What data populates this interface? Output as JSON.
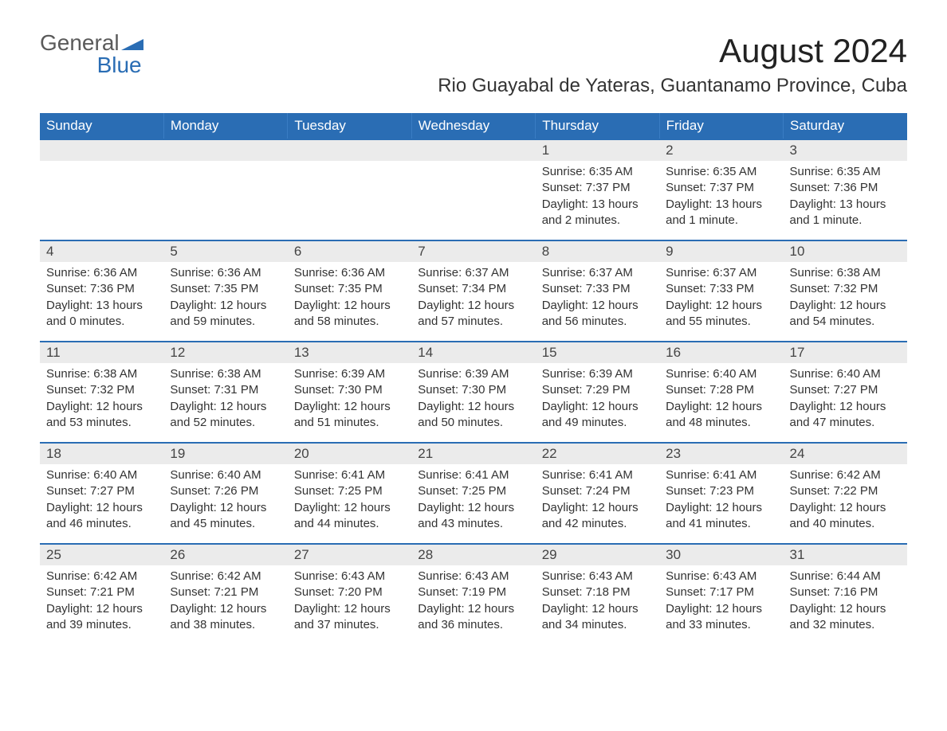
{
  "logo": {
    "top": "General",
    "bottom": "Blue"
  },
  "title": "August 2024",
  "subtitle": "Rio Guayabal de Yateras, Guantanamo Province, Cuba",
  "colors": {
    "header_bg": "#2a6db4",
    "header_text": "#ffffff",
    "daynum_bg": "#ebebeb",
    "row_border": "#2a6db4",
    "body_text": "#333333",
    "logo_gray": "#5a5a5a",
    "logo_blue": "#2a6db4",
    "page_bg": "#ffffff"
  },
  "weekdays": [
    "Sunday",
    "Monday",
    "Tuesday",
    "Wednesday",
    "Thursday",
    "Friday",
    "Saturday"
  ],
  "weeks": [
    [
      null,
      null,
      null,
      null,
      {
        "n": "1",
        "sunrise": "6:35 AM",
        "sunset": "7:37 PM",
        "daylight": "13 hours and 2 minutes."
      },
      {
        "n": "2",
        "sunrise": "6:35 AM",
        "sunset": "7:37 PM",
        "daylight": "13 hours and 1 minute."
      },
      {
        "n": "3",
        "sunrise": "6:35 AM",
        "sunset": "7:36 PM",
        "daylight": "13 hours and 1 minute."
      }
    ],
    [
      {
        "n": "4",
        "sunrise": "6:36 AM",
        "sunset": "7:36 PM",
        "daylight": "13 hours and 0 minutes."
      },
      {
        "n": "5",
        "sunrise": "6:36 AM",
        "sunset": "7:35 PM",
        "daylight": "12 hours and 59 minutes."
      },
      {
        "n": "6",
        "sunrise": "6:36 AM",
        "sunset": "7:35 PM",
        "daylight": "12 hours and 58 minutes."
      },
      {
        "n": "7",
        "sunrise": "6:37 AM",
        "sunset": "7:34 PM",
        "daylight": "12 hours and 57 minutes."
      },
      {
        "n": "8",
        "sunrise": "6:37 AM",
        "sunset": "7:33 PM",
        "daylight": "12 hours and 56 minutes."
      },
      {
        "n": "9",
        "sunrise": "6:37 AM",
        "sunset": "7:33 PM",
        "daylight": "12 hours and 55 minutes."
      },
      {
        "n": "10",
        "sunrise": "6:38 AM",
        "sunset": "7:32 PM",
        "daylight": "12 hours and 54 minutes."
      }
    ],
    [
      {
        "n": "11",
        "sunrise": "6:38 AM",
        "sunset": "7:32 PM",
        "daylight": "12 hours and 53 minutes."
      },
      {
        "n": "12",
        "sunrise": "6:38 AM",
        "sunset": "7:31 PM",
        "daylight": "12 hours and 52 minutes."
      },
      {
        "n": "13",
        "sunrise": "6:39 AM",
        "sunset": "7:30 PM",
        "daylight": "12 hours and 51 minutes."
      },
      {
        "n": "14",
        "sunrise": "6:39 AM",
        "sunset": "7:30 PM",
        "daylight": "12 hours and 50 minutes."
      },
      {
        "n": "15",
        "sunrise": "6:39 AM",
        "sunset": "7:29 PM",
        "daylight": "12 hours and 49 minutes."
      },
      {
        "n": "16",
        "sunrise": "6:40 AM",
        "sunset": "7:28 PM",
        "daylight": "12 hours and 48 minutes."
      },
      {
        "n": "17",
        "sunrise": "6:40 AM",
        "sunset": "7:27 PM",
        "daylight": "12 hours and 47 minutes."
      }
    ],
    [
      {
        "n": "18",
        "sunrise": "6:40 AM",
        "sunset": "7:27 PM",
        "daylight": "12 hours and 46 minutes."
      },
      {
        "n": "19",
        "sunrise": "6:40 AM",
        "sunset": "7:26 PM",
        "daylight": "12 hours and 45 minutes."
      },
      {
        "n": "20",
        "sunrise": "6:41 AM",
        "sunset": "7:25 PM",
        "daylight": "12 hours and 44 minutes."
      },
      {
        "n": "21",
        "sunrise": "6:41 AM",
        "sunset": "7:25 PM",
        "daylight": "12 hours and 43 minutes."
      },
      {
        "n": "22",
        "sunrise": "6:41 AM",
        "sunset": "7:24 PM",
        "daylight": "12 hours and 42 minutes."
      },
      {
        "n": "23",
        "sunrise": "6:41 AM",
        "sunset": "7:23 PM",
        "daylight": "12 hours and 41 minutes."
      },
      {
        "n": "24",
        "sunrise": "6:42 AM",
        "sunset": "7:22 PM",
        "daylight": "12 hours and 40 minutes."
      }
    ],
    [
      {
        "n": "25",
        "sunrise": "6:42 AM",
        "sunset": "7:21 PM",
        "daylight": "12 hours and 39 minutes."
      },
      {
        "n": "26",
        "sunrise": "6:42 AM",
        "sunset": "7:21 PM",
        "daylight": "12 hours and 38 minutes."
      },
      {
        "n": "27",
        "sunrise": "6:43 AM",
        "sunset": "7:20 PM",
        "daylight": "12 hours and 37 minutes."
      },
      {
        "n": "28",
        "sunrise": "6:43 AM",
        "sunset": "7:19 PM",
        "daylight": "12 hours and 36 minutes."
      },
      {
        "n": "29",
        "sunrise": "6:43 AM",
        "sunset": "7:18 PM",
        "daylight": "12 hours and 34 minutes."
      },
      {
        "n": "30",
        "sunrise": "6:43 AM",
        "sunset": "7:17 PM",
        "daylight": "12 hours and 33 minutes."
      },
      {
        "n": "31",
        "sunrise": "6:44 AM",
        "sunset": "7:16 PM",
        "daylight": "12 hours and 32 minutes."
      }
    ]
  ],
  "labels": {
    "sunrise": "Sunrise: ",
    "sunset": "Sunset: ",
    "daylight": "Daylight: "
  }
}
